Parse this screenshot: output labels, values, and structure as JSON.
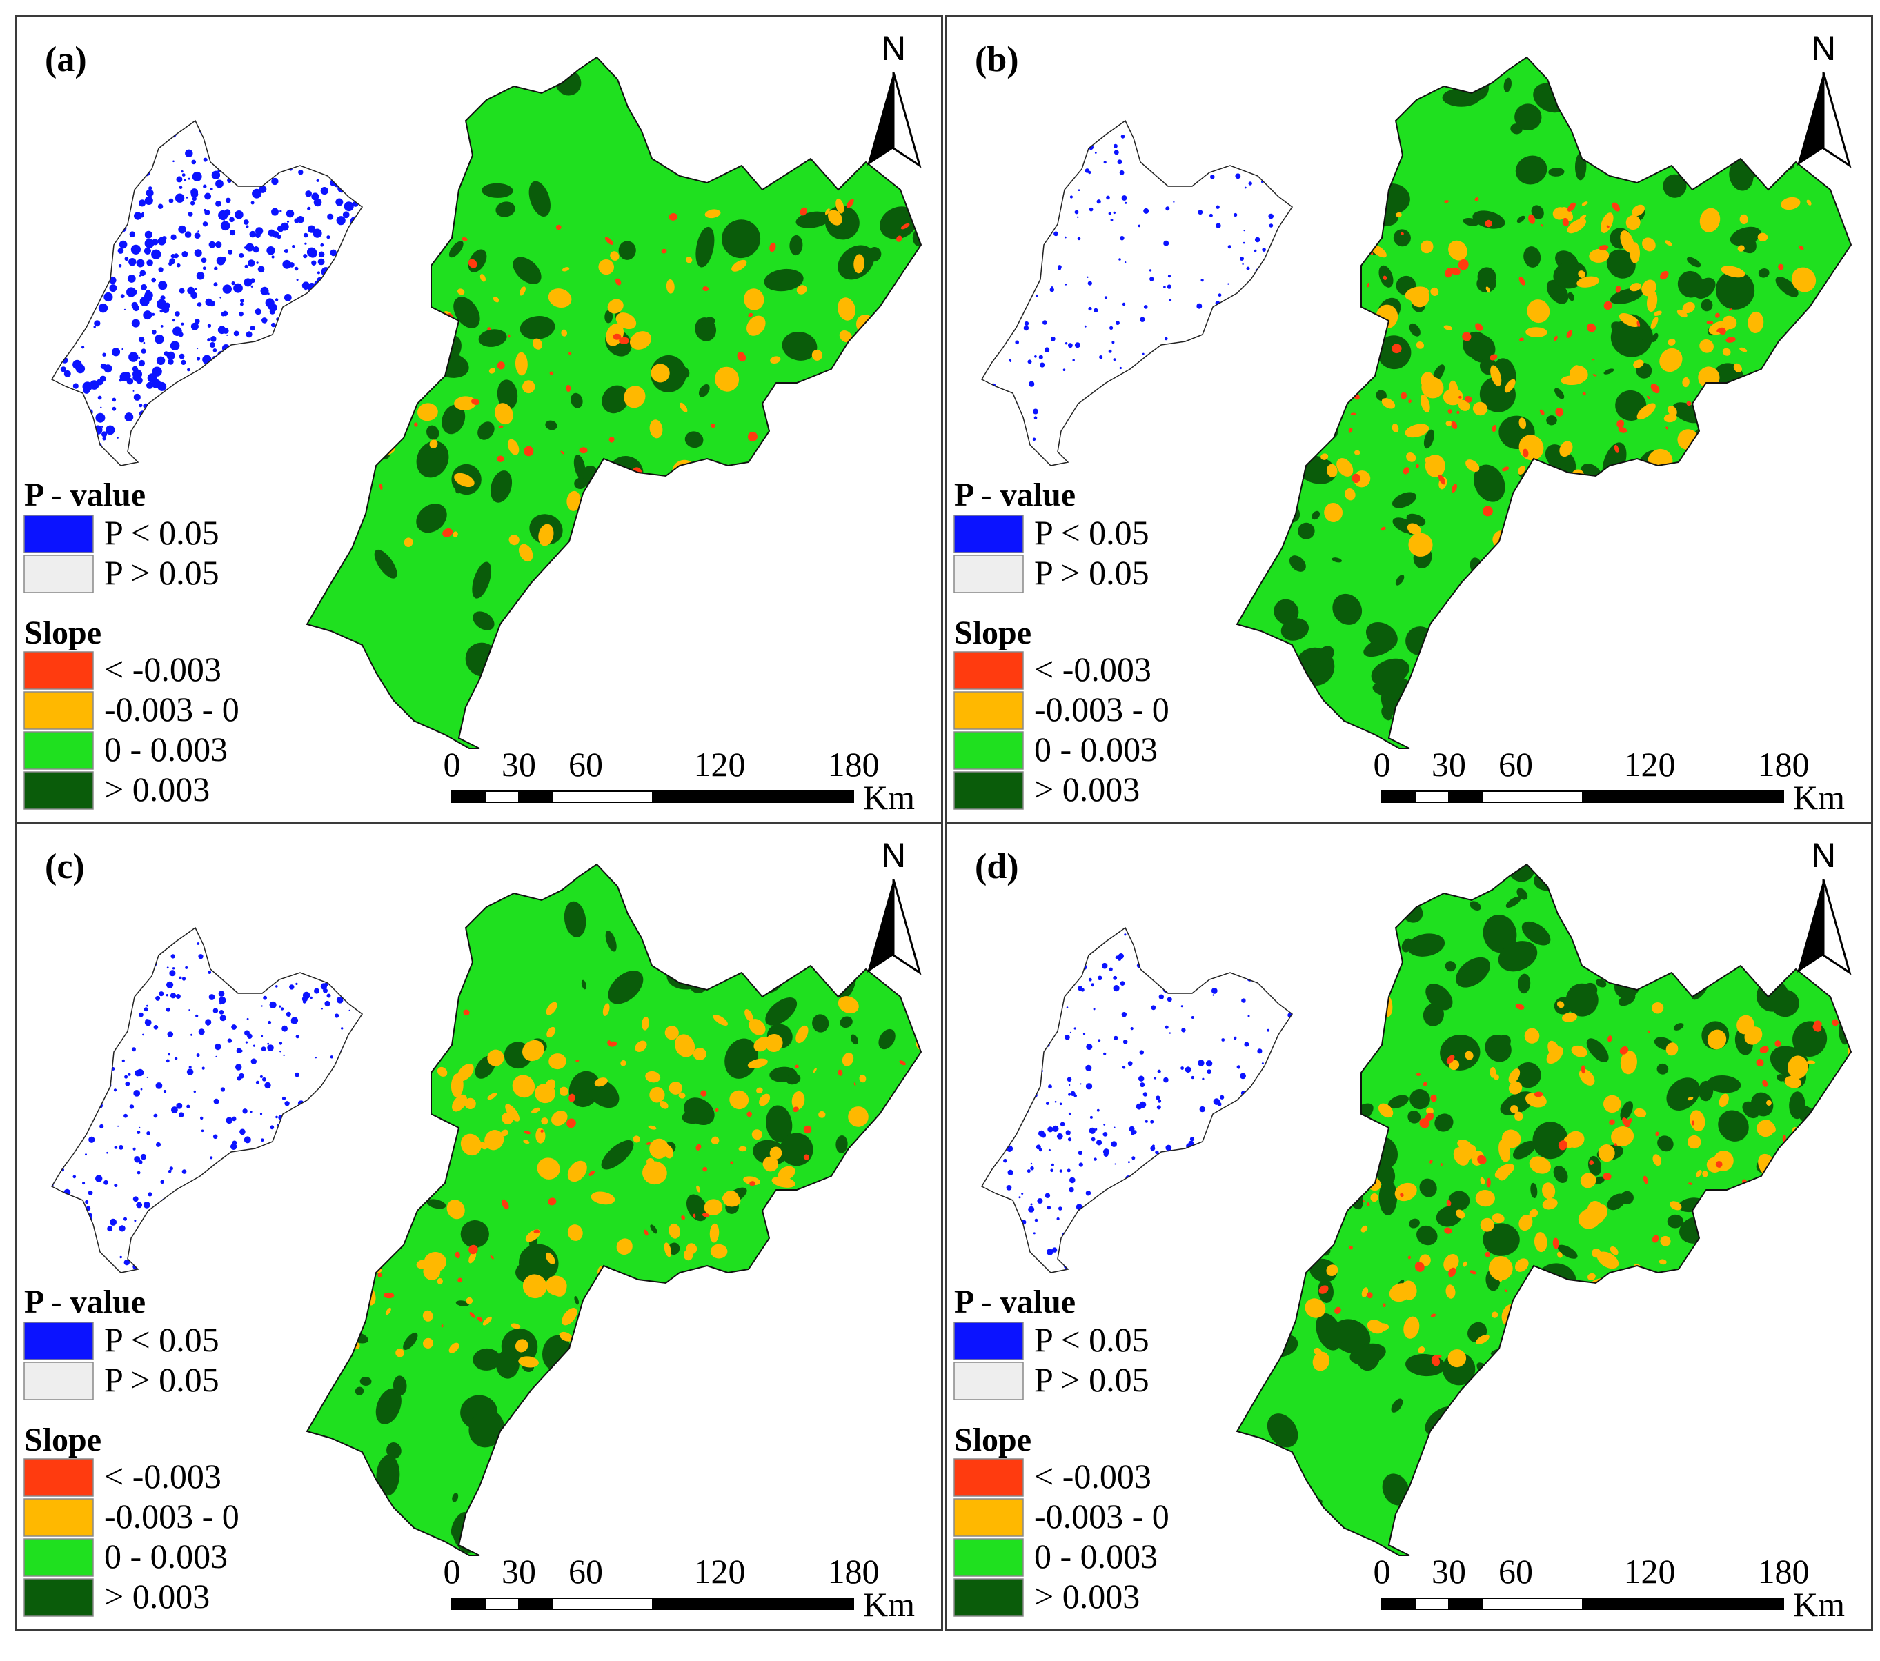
{
  "figure": {
    "panels": [
      {
        "label": "(a)",
        "style": "a"
      },
      {
        "label": "(b)",
        "style": "b"
      },
      {
        "label": "(c)",
        "style": "c"
      },
      {
        "label": "(d)",
        "style": "d"
      }
    ],
    "north_label": "N",
    "pvalue_legend": {
      "title": "P - value",
      "items": [
        {
          "label": "P < 0.05",
          "color": "#0b13ff"
        },
        {
          "label": "P > 0.05",
          "color": "#eeeeee"
        }
      ]
    },
    "slope_legend": {
      "title": "Slope",
      "items": [
        {
          "label": "< -0.003",
          "color": "#ff3b0f"
        },
        {
          "label": "-0.003 - 0",
          "color": "#ffb800"
        },
        {
          "label": "0 - 0.003",
          "color": "#1fe01f"
        },
        {
          "label": "> 0.003",
          "color": "#0a5c0a"
        }
      ]
    },
    "scale_bar": {
      "ticks": [
        "0",
        "30",
        "60",
        "120",
        "180"
      ],
      "unit": "Km"
    },
    "colors": {
      "pvalue_sig": "#0b13ff",
      "pvalue_nonsig": "#eeeeee",
      "slope_strong_neg": "#ff3b0f",
      "slope_neg": "#ffb800",
      "slope_pos": "#1fe01f",
      "slope_strong_pos": "#0a5c0a"
    }
  }
}
